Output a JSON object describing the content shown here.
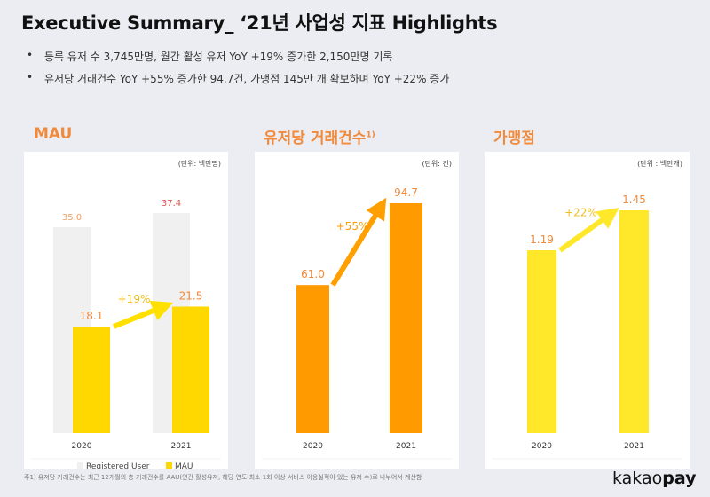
{
  "title": "Executive Summary_ ‘21년 사업성 지표 Highlights",
  "bullets": [
    "등록 유저 수 3,745만명, 월간 활성 유저 YoY +19% 증가한 2,150만명 기록",
    "유저당 거래건수 YoY +55% 증가한 94.7건, 가맹점 145만 개 확보하며 YoY +22% 증가"
  ],
  "footnote": "주1) 유저당 거래건수는  최근 12개월의 총 거래건수를 AAU(연간 활성유저, 해당 연도 최소 1회 이상 서비스 이용실적이 있는 유저 수)로 나누어서 계산함",
  "logo": {
    "a": "kakao",
    "b": "pay"
  },
  "chart_data": [
    {
      "type": "bar",
      "title": "MAU",
      "unit": "(단위: 백만명)",
      "categories": [
        "2020",
        "2021"
      ],
      "series": [
        {
          "name": "Registered User",
          "values": [
            35.0,
            37.4
          ],
          "color": "#f0f0f0",
          "labels": [
            "35.0",
            "37.4"
          ],
          "label_colors": [
            "#f0a060",
            "#e0504a"
          ]
        },
        {
          "name": "MAU",
          "values": [
            18.1,
            21.5
          ],
          "color": "#ffd800",
          "labels": [
            "18.1",
            "21.5"
          ],
          "label_colors": [
            "#f08a3c",
            "#f08a3c"
          ]
        }
      ],
      "growth": "+19%",
      "growth_color": "#ffe000",
      "legend": "bottom",
      "ymax": 35.0
    },
    {
      "type": "bar",
      "title": "유저당 거래건수",
      "title_sup": "1)",
      "unit": "(단위: 건)",
      "categories": [
        "2020",
        "2021"
      ],
      "series": [
        {
          "values": [
            61.0,
            94.7
          ],
          "color": "#ff9a00",
          "labels": [
            "61.0",
            "94.7"
          ],
          "label_colors": [
            "#f08a3c",
            "#f08a3c"
          ]
        }
      ],
      "growth": "+55%",
      "growth_color": "#ffa000",
      "ymax": 94.7
    },
    {
      "type": "bar",
      "title": "가맹점",
      "unit": "(단위 : 백만개)",
      "categories": [
        "2020",
        "2021"
      ],
      "series": [
        {
          "values": [
            1.19,
            1.45
          ],
          "color": "#ffe82a",
          "labels": [
            "1.19",
            "1.45"
          ],
          "label_colors": [
            "#f08a3c",
            "#f08a3c"
          ]
        }
      ],
      "growth": "+22%",
      "growth_color": "#ffe82a",
      "ymax": 1.45
    }
  ]
}
